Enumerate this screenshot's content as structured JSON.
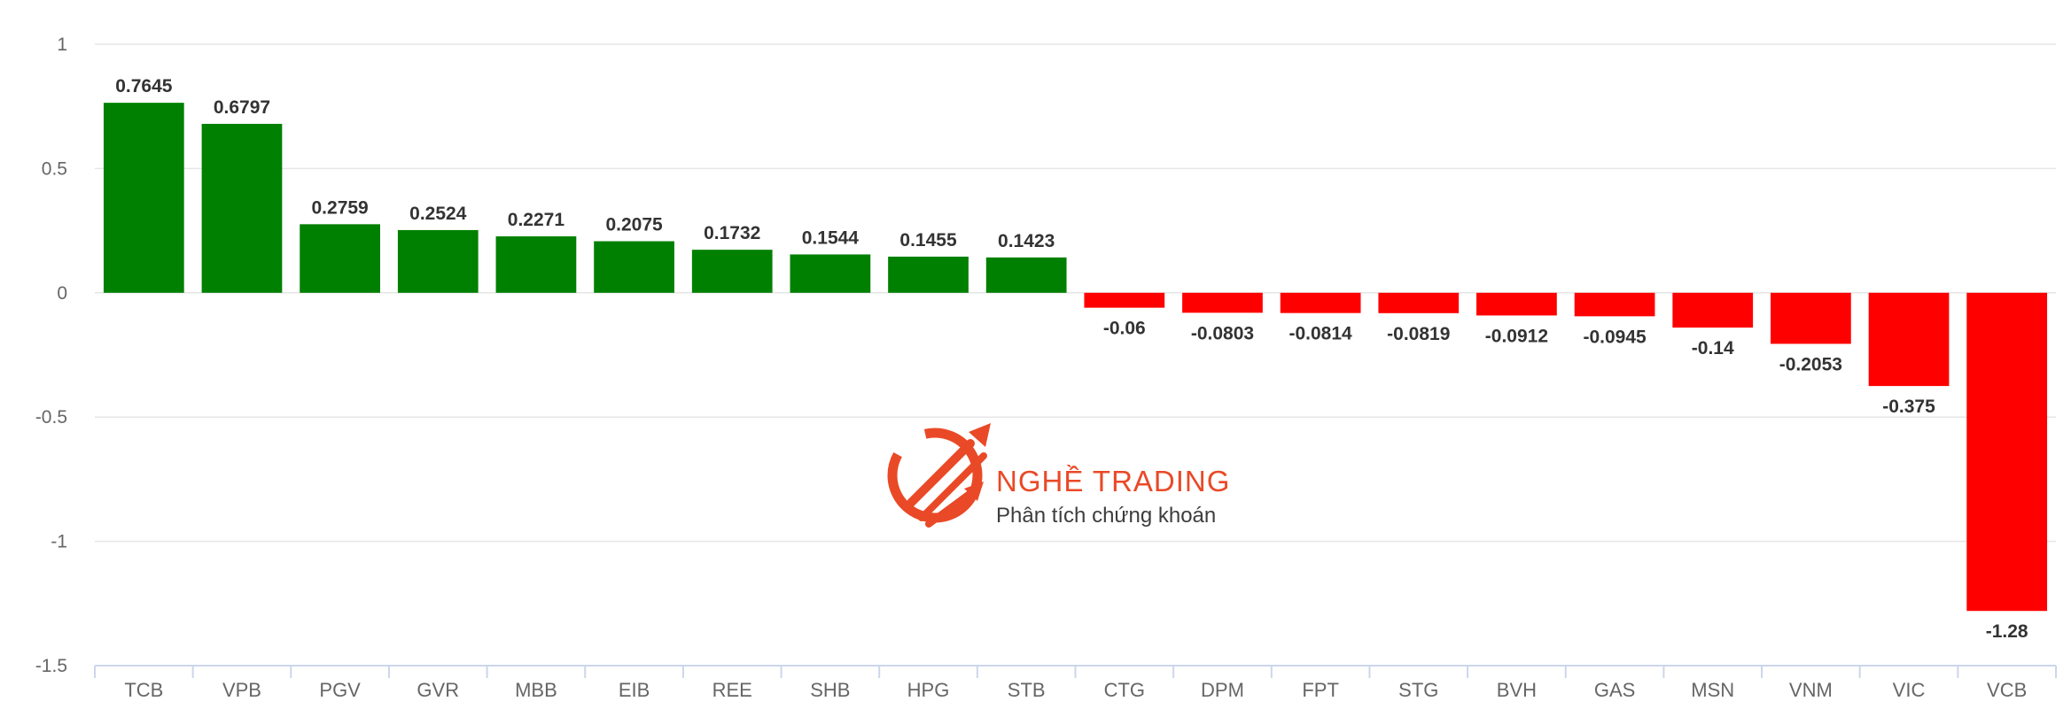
{
  "chart_data": {
    "type": "bar",
    "categories": [
      "TCB",
      "VPB",
      "PGV",
      "GVR",
      "MBB",
      "EIB",
      "REE",
      "SHB",
      "HPG",
      "STB",
      "CTG",
      "DPM",
      "FPT",
      "STG",
      "BVH",
      "GAS",
      "MSN",
      "VNM",
      "VIC",
      "VCB"
    ],
    "values": [
      0.7645,
      0.6797,
      0.2759,
      0.2524,
      0.2271,
      0.2075,
      0.1732,
      0.1544,
      0.1455,
      0.1423,
      -0.06,
      -0.0803,
      -0.0814,
      -0.0819,
      -0.0912,
      -0.0945,
      -0.14,
      -0.2053,
      -0.375,
      -1.28
    ],
    "value_labels": [
      "0.7645",
      "0.6797",
      "0.2759",
      "0.2524",
      "0.2271",
      "0.2075",
      "0.1732",
      "0.1544",
      "0.1455",
      "0.1423",
      "-0.06",
      "-0.0803",
      "-0.0814",
      "-0.0819",
      "-0.0912",
      "-0.0945",
      "-0.14",
      "-0.2053",
      "-0.375",
      "-1.28"
    ],
    "ylim": [
      -1.5,
      1
    ],
    "yticks": [
      1,
      0.5,
      0,
      -0.5,
      -1,
      -1.5
    ],
    "ytick_labels": [
      "1",
      "0.5",
      "0",
      "-0.5",
      "-1",
      "-1.5"
    ],
    "grid": true,
    "title": "",
    "xlabel": "",
    "ylabel": "",
    "colors": {
      "positive": "#008000",
      "negative": "#ff0000",
      "grid": "#e6e6e6",
      "axis": "#ccd6eb"
    }
  },
  "watermark": {
    "title": "NGHỀ TRADING",
    "subtitle": "Phân tích chứng khoán",
    "logo_icon": "trading-arrows-logo-icon",
    "color": "#e8401c"
  }
}
